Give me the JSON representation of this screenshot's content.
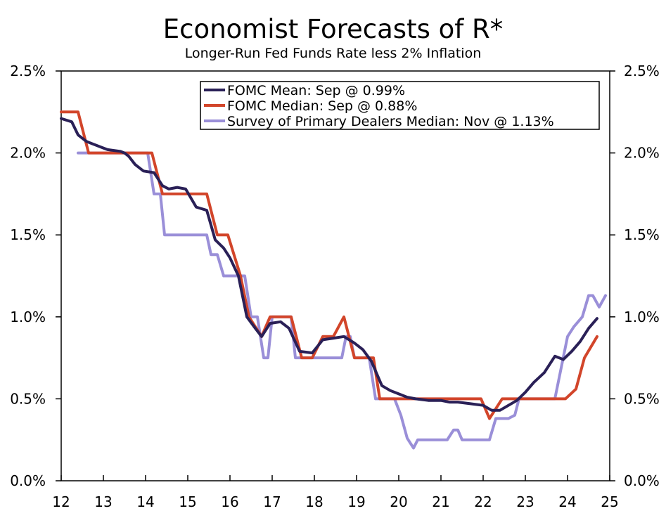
{
  "chart_data": {
    "type": "line",
    "title": "Economist Forecasts of R*",
    "subtitle": "Longer-Run Fed Funds Rate less 2% Inflation",
    "xlabel": "",
    "ylabel": "",
    "xlim": [
      12,
      25
    ],
    "ylim": [
      0,
      2.5
    ],
    "x_ticks": [
      "12",
      "13",
      "14",
      "15",
      "16",
      "17",
      "18",
      "19",
      "20",
      "21",
      "22",
      "23",
      "24",
      "25"
    ],
    "y_ticks": [
      "0.0%",
      "0.5%",
      "1.0%",
      "1.5%",
      "2.0%",
      "2.5%"
    ],
    "legend_position": "top-right",
    "series": [
      {
        "name": "FOMC Mean: Sep @ 0.99%",
        "color": "#2a2057",
        "points": [
          [
            12.0,
            2.21
          ],
          [
            12.25,
            2.19
          ],
          [
            12.4,
            2.11
          ],
          [
            12.6,
            2.07
          ],
          [
            13.0,
            2.03
          ],
          [
            13.1,
            2.02
          ],
          [
            13.4,
            2.01
          ],
          [
            13.5,
            2.0
          ],
          [
            13.6,
            1.98
          ],
          [
            13.75,
            1.93
          ],
          [
            13.95,
            1.89
          ],
          [
            14.2,
            1.88
          ],
          [
            14.4,
            1.8
          ],
          [
            14.55,
            1.78
          ],
          [
            14.75,
            1.79
          ],
          [
            14.95,
            1.78
          ],
          [
            15.2,
            1.67
          ],
          [
            15.45,
            1.65
          ],
          [
            15.65,
            1.47
          ],
          [
            15.85,
            1.42
          ],
          [
            16.0,
            1.36
          ],
          [
            16.2,
            1.25
          ],
          [
            16.4,
            1.0
          ],
          [
            16.6,
            0.93
          ],
          [
            16.75,
            0.88
          ],
          [
            16.95,
            0.96
          ],
          [
            17.2,
            0.97
          ],
          [
            17.4,
            0.93
          ],
          [
            17.65,
            0.79
          ],
          [
            17.95,
            0.78
          ],
          [
            18.2,
            0.86
          ],
          [
            18.45,
            0.87
          ],
          [
            18.7,
            0.88
          ],
          [
            18.95,
            0.84
          ],
          [
            19.15,
            0.8
          ],
          [
            19.35,
            0.73
          ],
          [
            19.6,
            0.58
          ],
          [
            19.8,
            0.55
          ],
          [
            20.0,
            0.53
          ],
          [
            20.2,
            0.51
          ],
          [
            20.4,
            0.5
          ],
          [
            20.7,
            0.49
          ],
          [
            21.0,
            0.49
          ],
          [
            21.2,
            0.48
          ],
          [
            21.4,
            0.48
          ],
          [
            21.7,
            0.47
          ],
          [
            22.0,
            0.46
          ],
          [
            22.2,
            0.43
          ],
          [
            22.4,
            0.43
          ],
          [
            22.6,
            0.46
          ],
          [
            22.8,
            0.49
          ],
          [
            23.0,
            0.54
          ],
          [
            23.2,
            0.6
          ],
          [
            23.45,
            0.66
          ],
          [
            23.7,
            0.76
          ],
          [
            23.9,
            0.74
          ],
          [
            24.1,
            0.79
          ],
          [
            24.3,
            0.85
          ],
          [
            24.5,
            0.93
          ],
          [
            24.7,
            0.99
          ]
        ]
      },
      {
        "name": "FOMC Median: Sep @ 0.88%",
        "color": "#d2452a",
        "points": [
          [
            12.0,
            2.25
          ],
          [
            12.4,
            2.25
          ],
          [
            12.65,
            2.0
          ],
          [
            14.15,
            2.0
          ],
          [
            14.4,
            1.75
          ],
          [
            15.45,
            1.75
          ],
          [
            15.7,
            1.5
          ],
          [
            15.95,
            1.5
          ],
          [
            16.25,
            1.25
          ],
          [
            16.45,
            1.0
          ],
          [
            16.75,
            0.88
          ],
          [
            16.95,
            1.0
          ],
          [
            17.45,
            1.0
          ],
          [
            17.7,
            0.75
          ],
          [
            17.95,
            0.75
          ],
          [
            18.2,
            0.88
          ],
          [
            18.45,
            0.88
          ],
          [
            18.7,
            1.0
          ],
          [
            18.95,
            0.75
          ],
          [
            19.4,
            0.75
          ],
          [
            19.55,
            0.5
          ],
          [
            21.95,
            0.5
          ],
          [
            22.15,
            0.38
          ],
          [
            22.45,
            0.5
          ],
          [
            23.7,
            0.5
          ],
          [
            23.95,
            0.5
          ],
          [
            24.2,
            0.56
          ],
          [
            24.4,
            0.75
          ],
          [
            24.7,
            0.88
          ]
        ]
      },
      {
        "name": "Survey of Primary Dealers Median: Nov @ 1.13%",
        "color": "#9a8fd8",
        "points": [
          [
            12.4,
            2.0
          ],
          [
            13.7,
            2.0
          ],
          [
            14.05,
            2.0
          ],
          [
            14.2,
            1.75
          ],
          [
            14.35,
            1.75
          ],
          [
            14.45,
            1.5
          ],
          [
            15.45,
            1.5
          ],
          [
            15.55,
            1.38
          ],
          [
            15.7,
            1.38
          ],
          [
            15.85,
            1.25
          ],
          [
            16.35,
            1.25
          ],
          [
            16.5,
            1.0
          ],
          [
            16.65,
            1.0
          ],
          [
            16.8,
            0.75
          ],
          [
            16.9,
            0.75
          ],
          [
            17.0,
            1.0
          ],
          [
            17.45,
            1.0
          ],
          [
            17.55,
            0.75
          ],
          [
            18.65,
            0.75
          ],
          [
            18.75,
            0.88
          ],
          [
            18.85,
            0.88
          ],
          [
            18.95,
            0.75
          ],
          [
            19.3,
            0.75
          ],
          [
            19.45,
            0.5
          ],
          [
            19.9,
            0.5
          ],
          [
            20.05,
            0.4
          ],
          [
            20.2,
            0.26
          ],
          [
            20.35,
            0.2
          ],
          [
            20.45,
            0.25
          ],
          [
            21.15,
            0.25
          ],
          [
            21.3,
            0.31
          ],
          [
            21.4,
            0.31
          ],
          [
            21.5,
            0.25
          ],
          [
            22.15,
            0.25
          ],
          [
            22.3,
            0.38
          ],
          [
            22.6,
            0.38
          ],
          [
            22.75,
            0.4
          ],
          [
            22.85,
            0.5
          ],
          [
            23.7,
            0.5
          ],
          [
            24.0,
            0.88
          ],
          [
            24.15,
            0.94
          ],
          [
            24.35,
            1.0
          ],
          [
            24.5,
            1.13
          ],
          [
            24.6,
            1.13
          ],
          [
            24.75,
            1.06
          ],
          [
            24.9,
            1.13
          ]
        ]
      }
    ]
  }
}
